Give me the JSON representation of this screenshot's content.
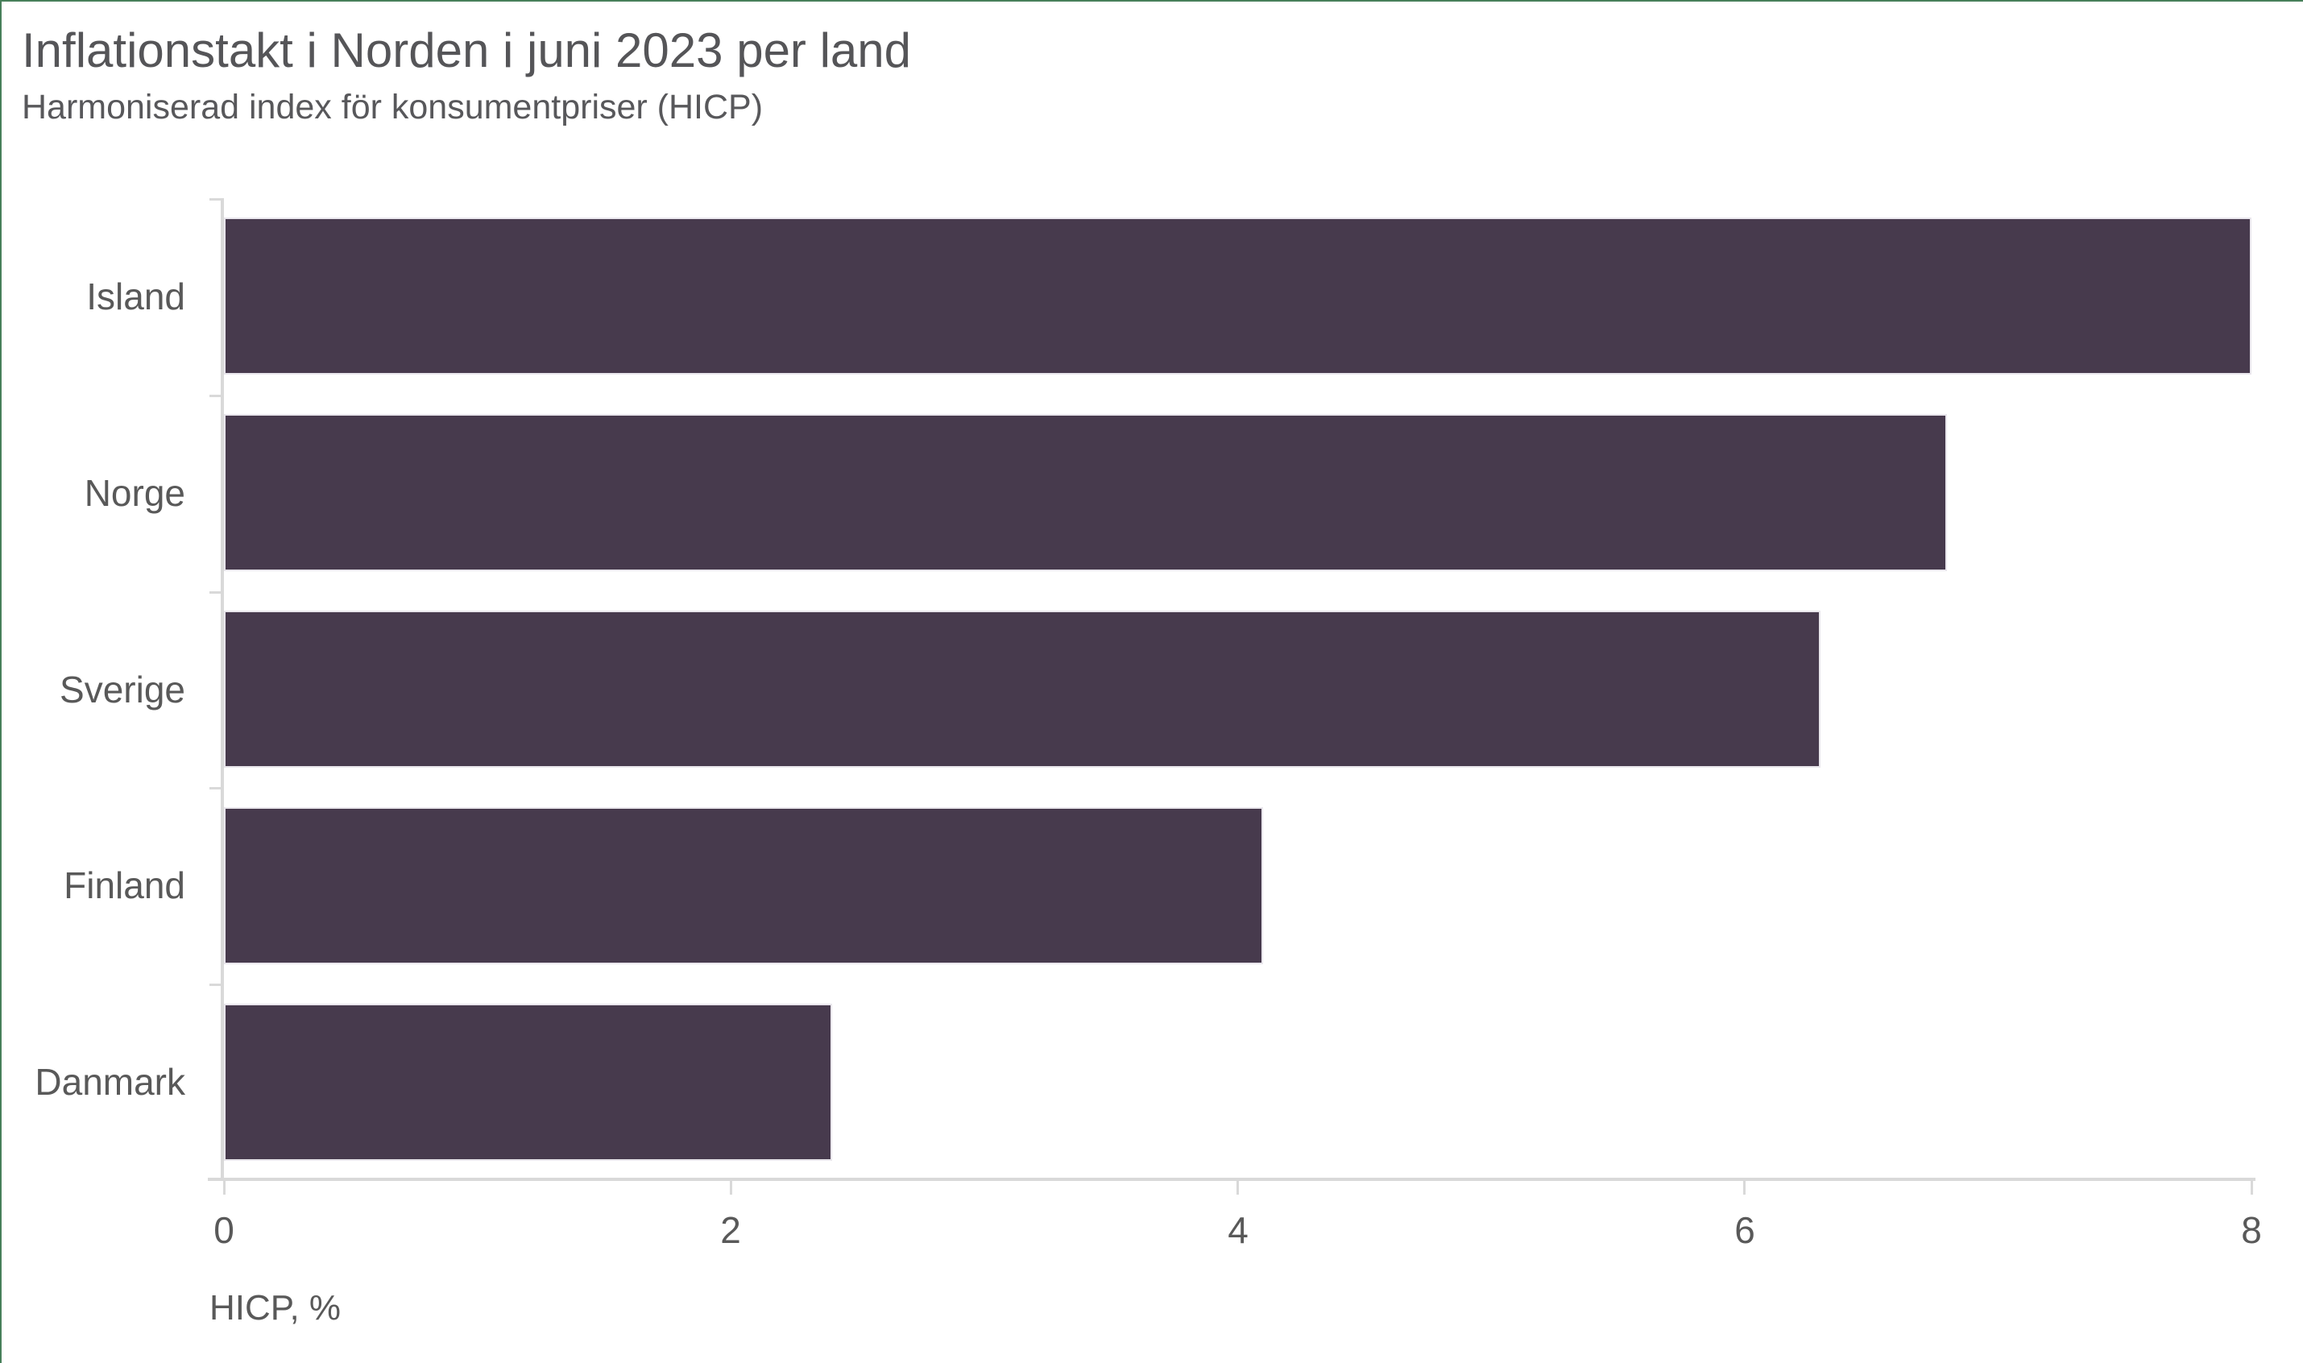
{
  "chart_data": {
    "type": "bar",
    "orientation": "horizontal",
    "title": "Inflationstakt i Norden i juni 2023 per land",
    "subtitle": "Harmoniserad index för konsumentpriser (HICP)",
    "categories": [
      "Island",
      "Norge",
      "Sverige",
      "Finland",
      "Danmark"
    ],
    "values": [
      8.0,
      6.8,
      6.3,
      4.1,
      2.4
    ],
    "xlabel": "HICP, %",
    "ylabel": "",
    "xlim": [
      0,
      8
    ],
    "xticks": [
      0,
      2,
      4,
      6,
      8
    ],
    "grid": false,
    "legend": false,
    "bar_color": "#473a4d",
    "axis_color": "#d9d9d9",
    "tick_label_color": "#595959",
    "title_color": "#555558"
  }
}
